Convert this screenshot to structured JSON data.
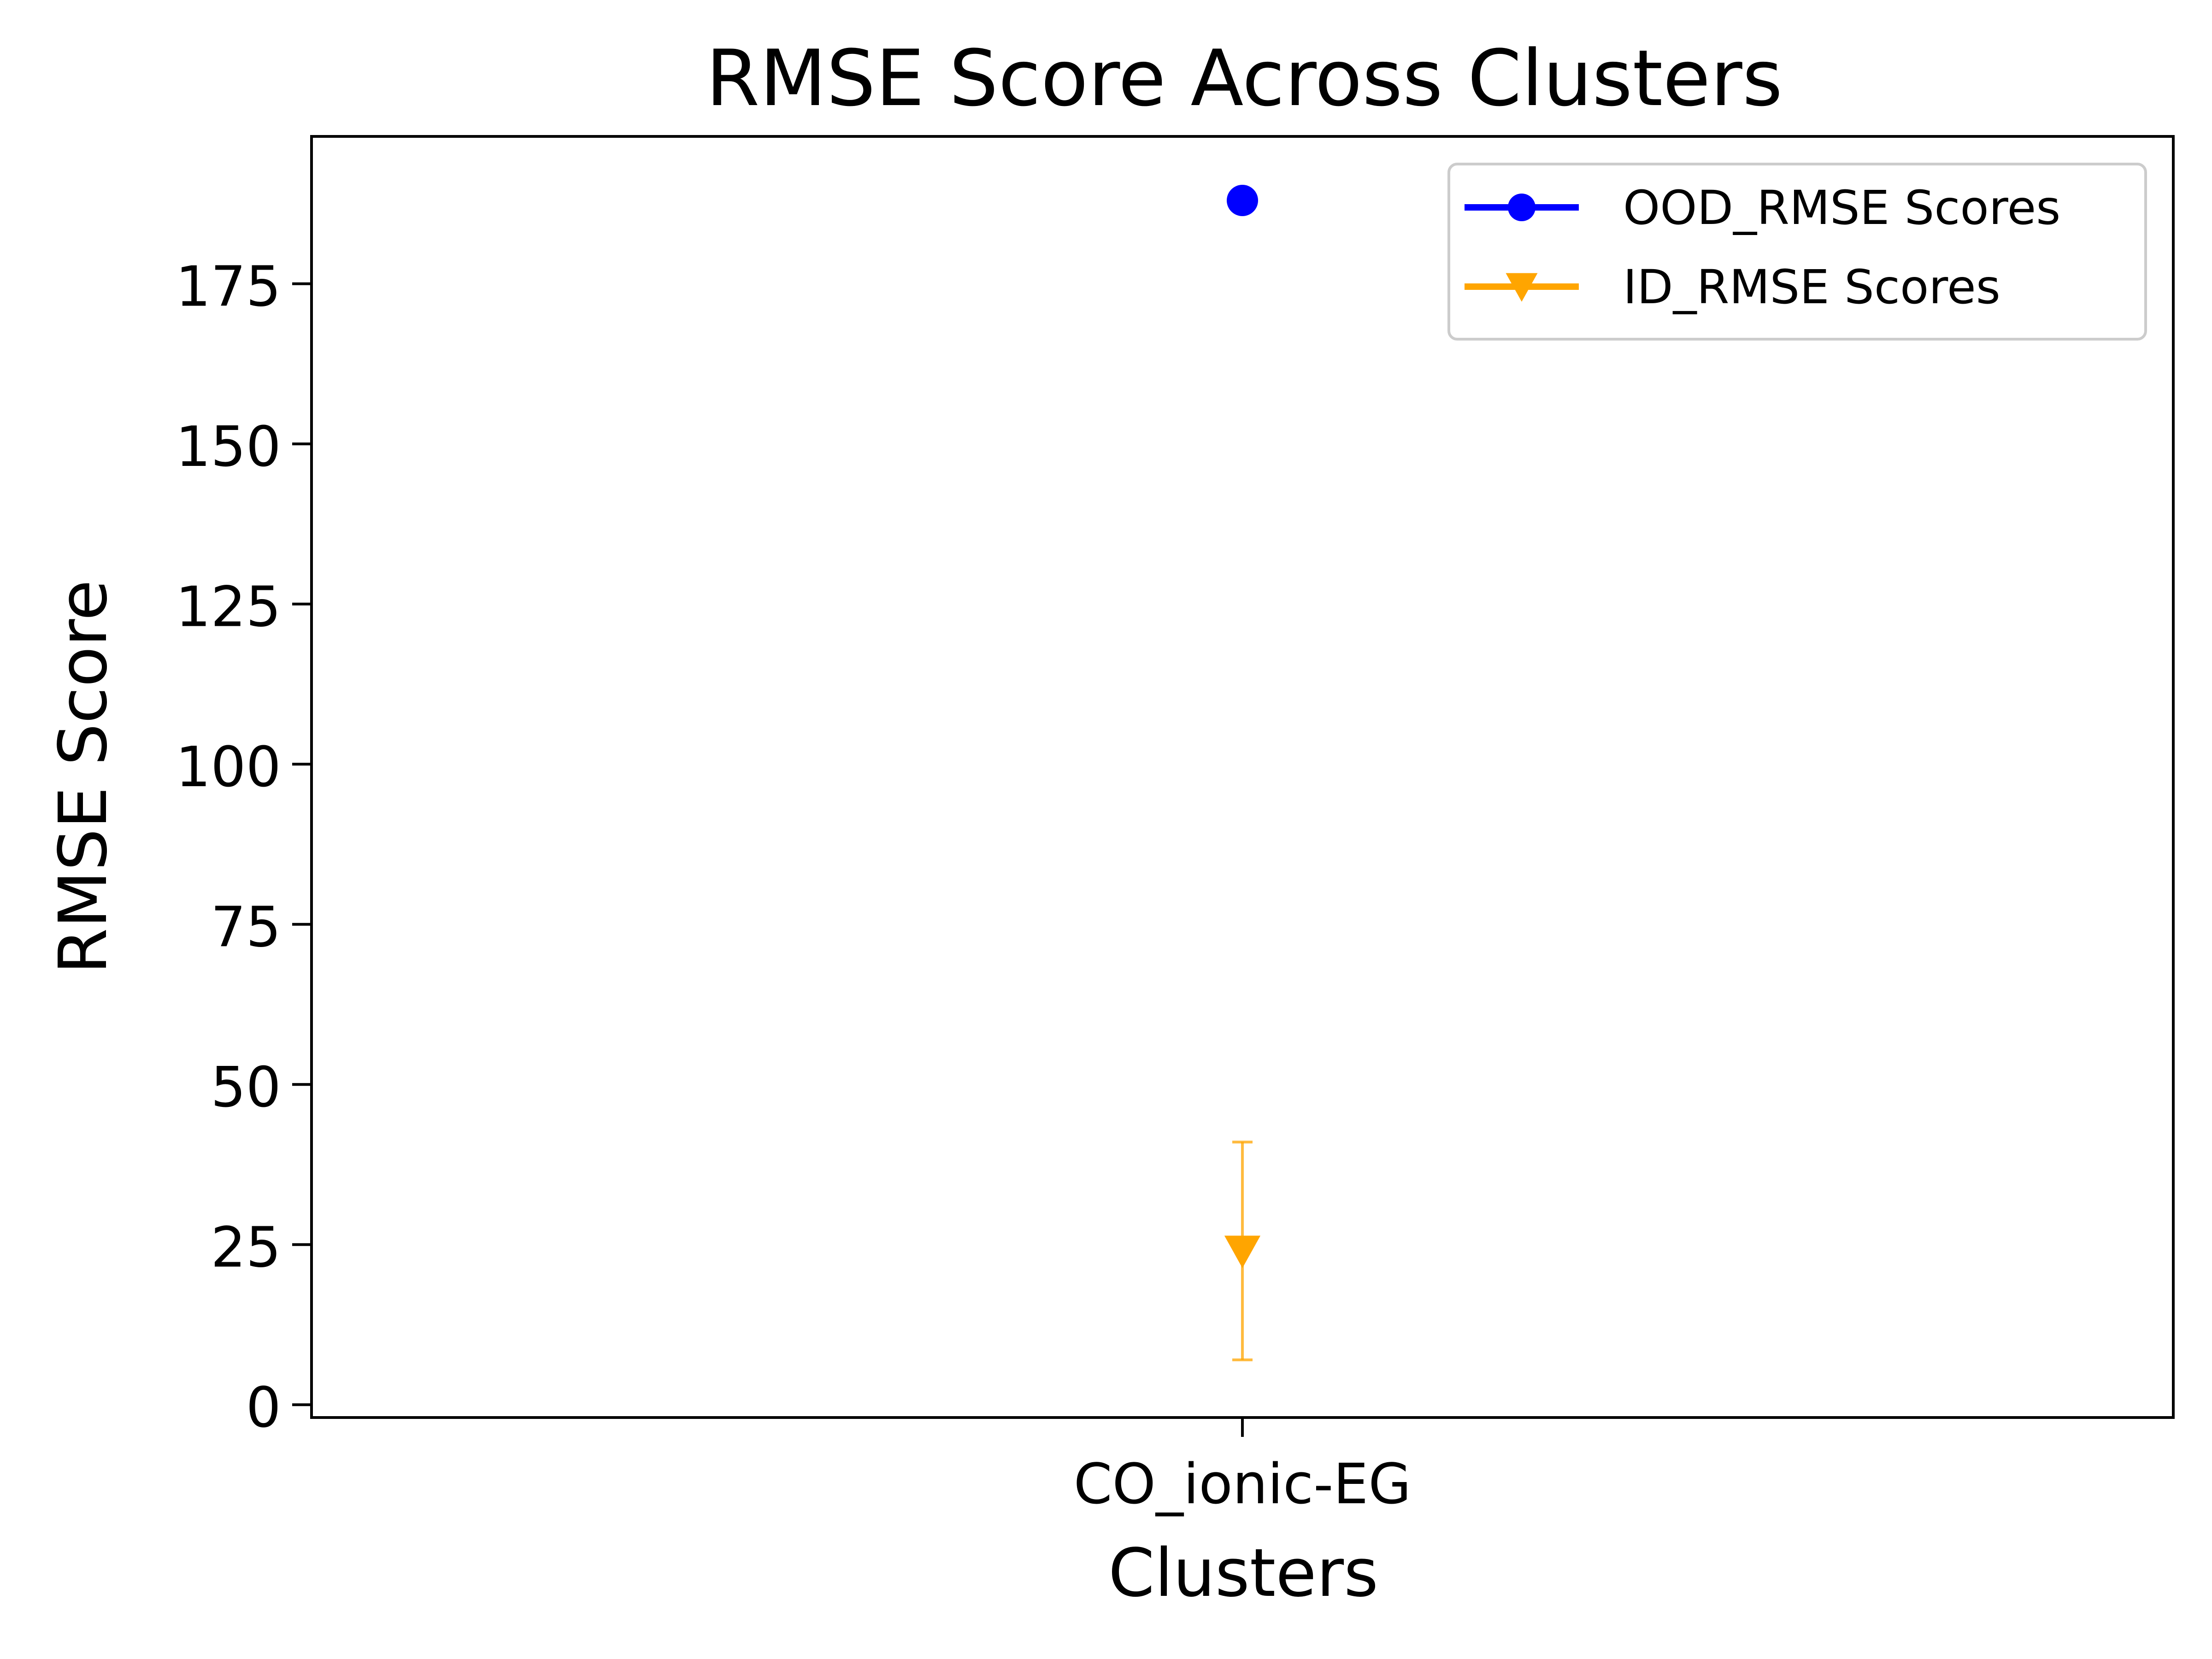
{
  "chart_data": {
    "type": "scatter",
    "title": "RMSE Score Across Clusters",
    "xlabel": "Clusters",
    "ylabel": "RMSE Score",
    "categories": [
      "CO_ionic-EG"
    ],
    "ylim": [
      -2,
      198
    ],
    "yticks": [
      0,
      25,
      50,
      75,
      100,
      125,
      150,
      175
    ],
    "grid": false,
    "legend_position": "top-right",
    "series": [
      {
        "name": "OOD_RMSE Scores",
        "color": "#0000ff",
        "marker": "circle",
        "values": [
          188
        ]
      },
      {
        "name": "ID_RMSE Scores",
        "color": "#ffa500",
        "marker": "triangle-down",
        "values": [
          24
        ],
        "error_low": [
          7
        ],
        "error_high": [
          41
        ]
      }
    ]
  }
}
